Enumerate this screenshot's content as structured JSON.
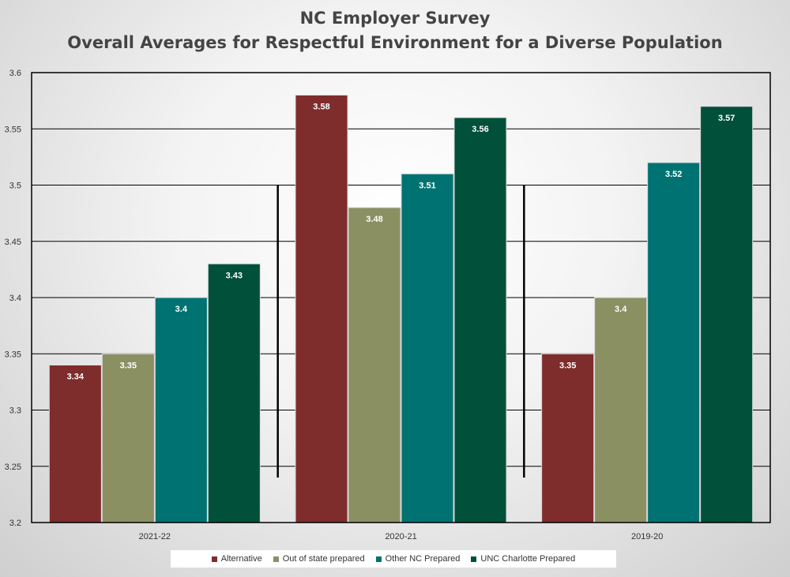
{
  "title_lines": [
    "NC Employer Survey",
    "Overall Averages for Respectful Environment for a Diverse Population"
  ],
  "chart_data": {
    "type": "bar",
    "title": "NC Employer Survey Overall Averages for Respectful Environment for a Diverse Population",
    "categories": [
      "2021-22",
      "2020-21",
      "2019-20"
    ],
    "series": [
      {
        "name": "Alternative",
        "color": "#7f2c2c",
        "values": [
          3.34,
          3.58,
          3.35
        ]
      },
      {
        "name": "Out of state prepared",
        "color": "#8b9063",
        "values": [
          3.35,
          3.48,
          3.4
        ]
      },
      {
        "name": "Other NC Prepared",
        "color": "#007272",
        "values": [
          3.4,
          3.51,
          3.52
        ]
      },
      {
        "name": "UNC Charlotte Prepared",
        "color": "#00503a",
        "values": [
          3.43,
          3.56,
          3.57
        ]
      }
    ],
    "data_labels": [
      [
        "3.34",
        "3.58",
        "3.35"
      ],
      [
        "3.35",
        "3.48",
        "3.4"
      ],
      [
        "3.4",
        "3.51",
        "3.52"
      ],
      [
        "3.43",
        "3.56",
        "3.57"
      ]
    ],
    "ylim": [
      3.2,
      3.6
    ],
    "yticks": [
      "3.2",
      "3.25",
      "3.3",
      "3.35",
      "3.4",
      "3.45",
      "3.5",
      "3.55",
      "3.6"
    ],
    "xlabel": "",
    "ylabel": "",
    "grid": true,
    "legend_position": "bottom"
  }
}
